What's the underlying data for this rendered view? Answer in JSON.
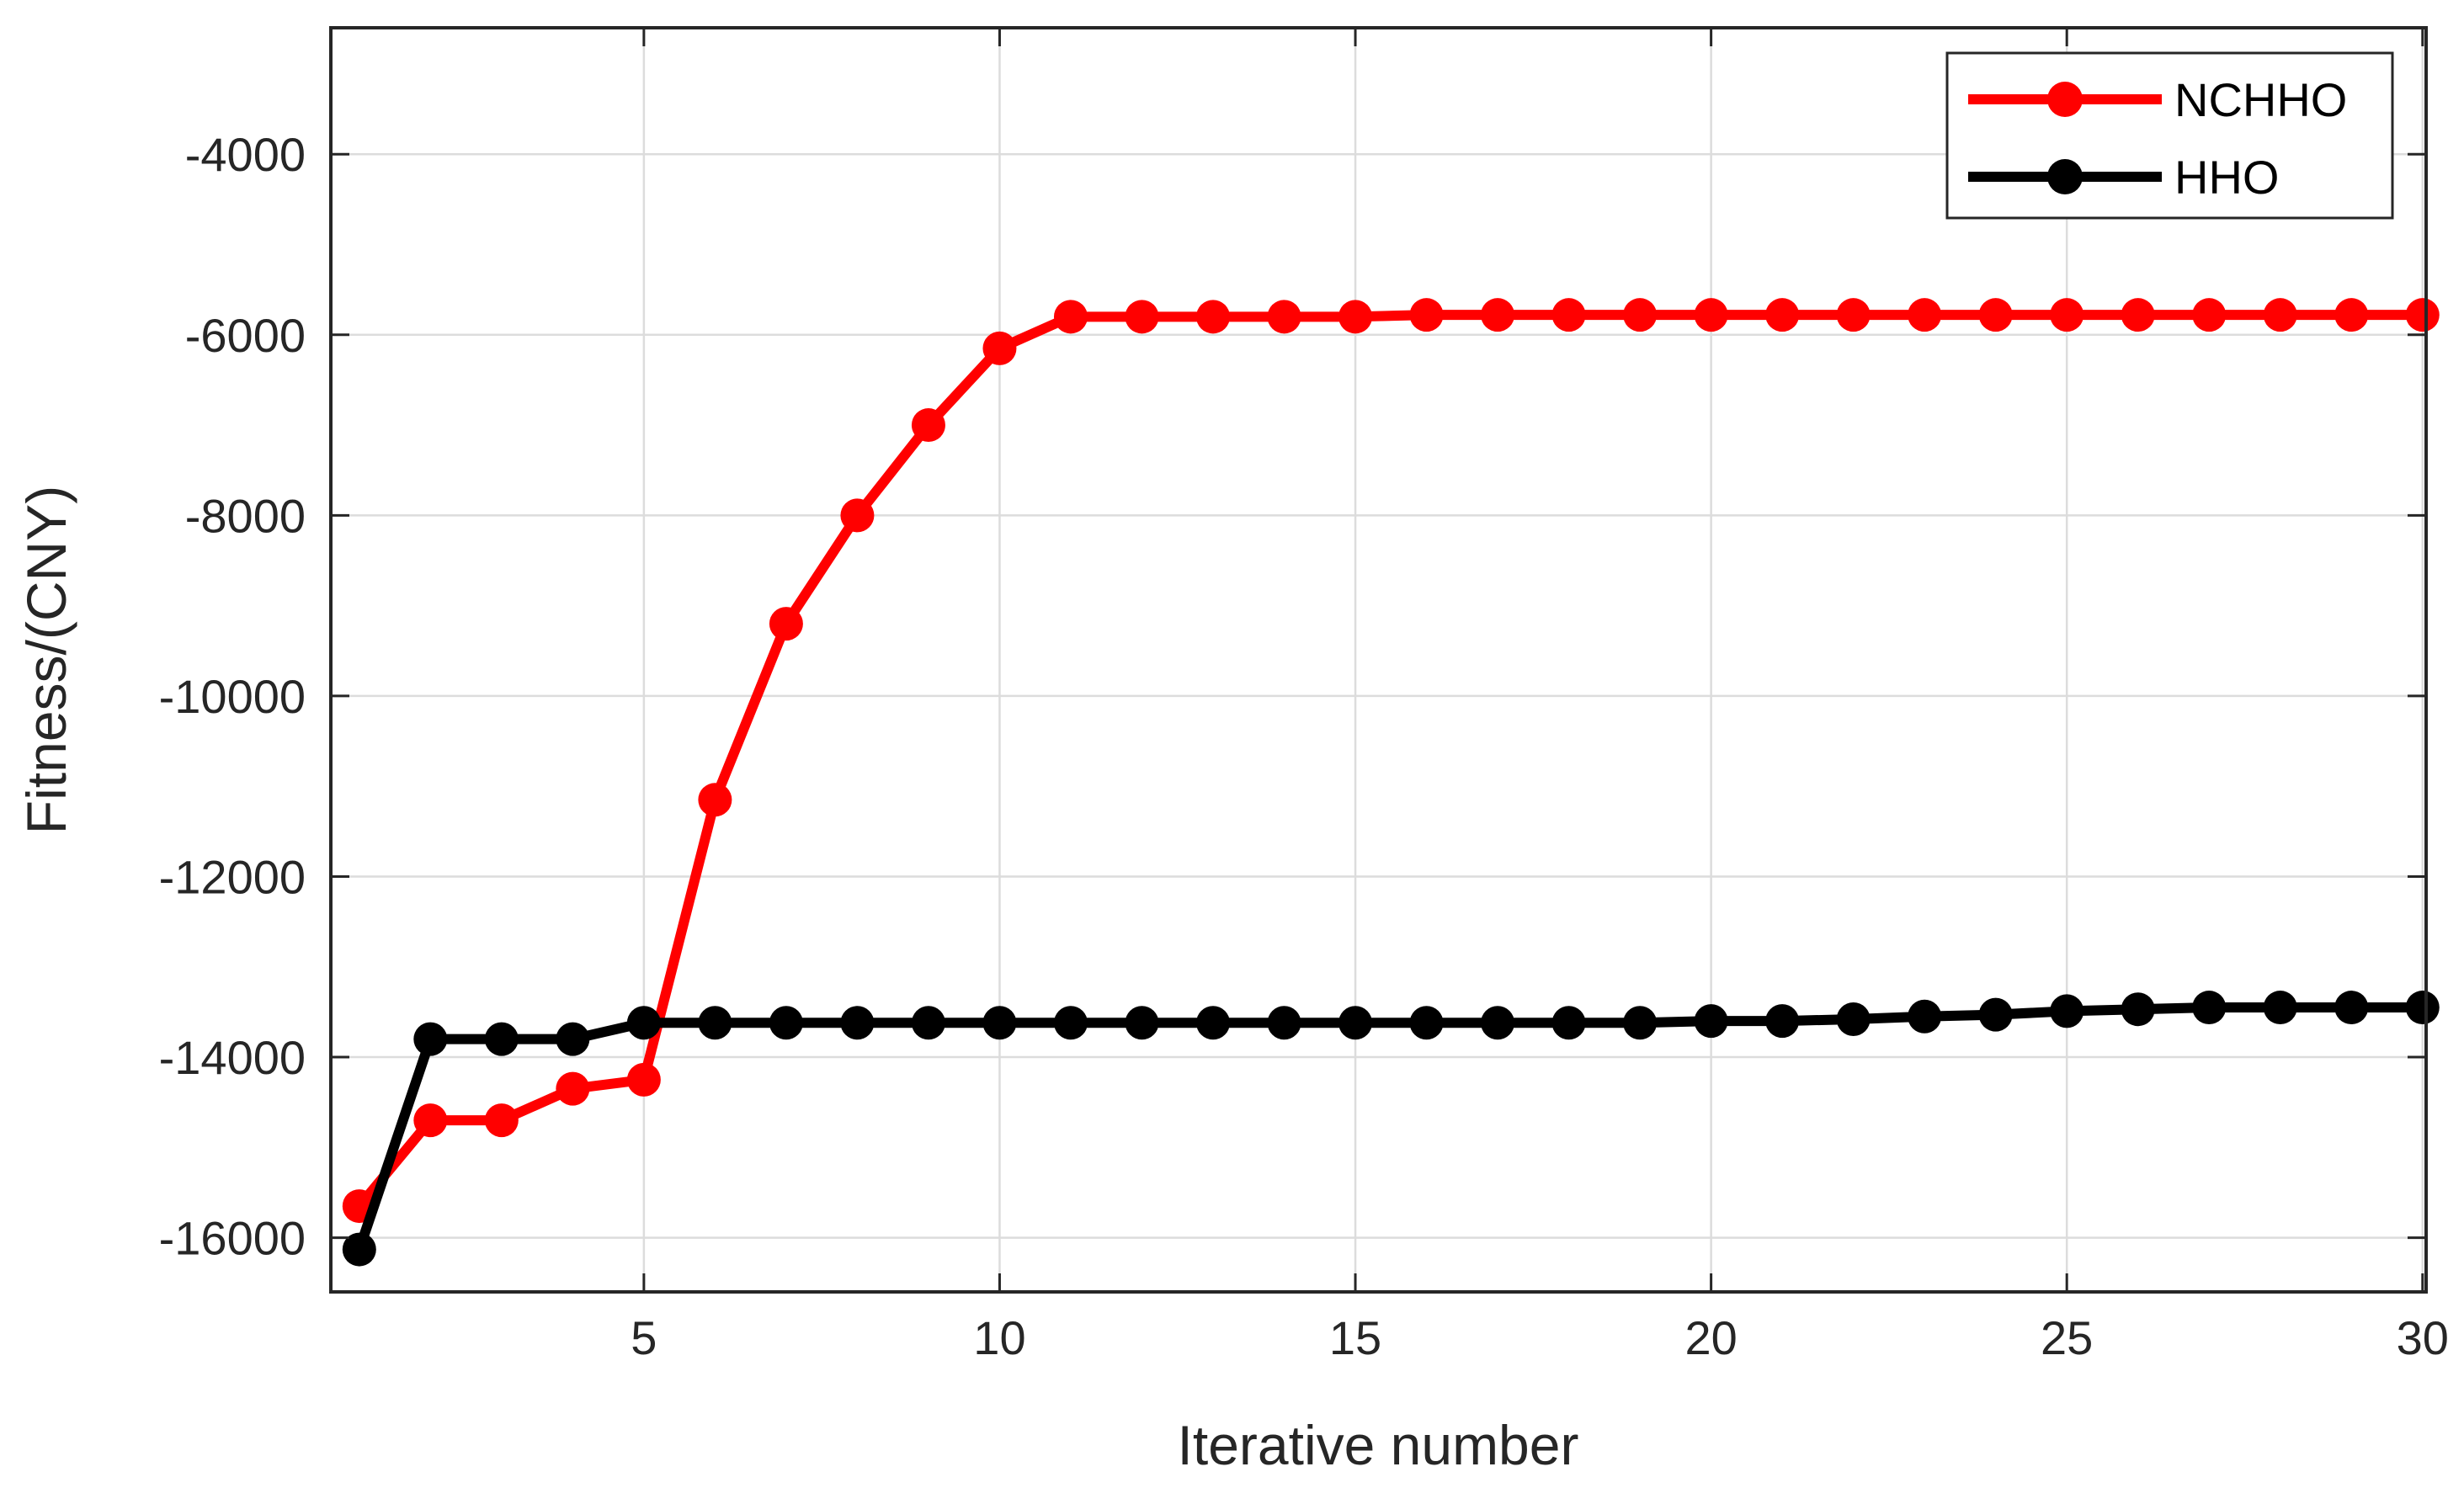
{
  "chart_data": {
    "type": "line",
    "xlabel": "Iterative number",
    "ylabel": "Fitness/(CNY)",
    "xlim": [
      0.6,
      30.05
    ],
    "ylim": [
      -16600,
      -2600
    ],
    "xticks": [
      5,
      10,
      15,
      20,
      25,
      30
    ],
    "yticks": [
      -16000,
      -14000,
      -12000,
      -10000,
      -8000,
      -6000,
      -4000
    ],
    "grid": true,
    "legend_position": "top-right",
    "x": [
      1,
      2,
      3,
      4,
      5,
      6,
      7,
      8,
      9,
      10,
      11,
      12,
      13,
      14,
      15,
      16,
      17,
      18,
      19,
      20,
      21,
      22,
      23,
      24,
      25,
      26,
      27,
      28,
      29,
      30
    ],
    "series": [
      {
        "name": "NCHHO",
        "color": "#ff0000",
        "values": [
          -15650,
          -14700,
          -14700,
          -14350,
          -14250,
          -11150,
          -9200,
          -8000,
          -7000,
          -6150,
          -5800,
          -5800,
          -5800,
          -5800,
          -5800,
          -5780,
          -5780,
          -5780,
          -5780,
          -5780,
          -5780,
          -5780,
          -5780,
          -5780,
          -5780,
          -5780,
          -5780,
          -5780,
          -5780,
          -5780
        ]
      },
      {
        "name": "HHO",
        "color": "#000000",
        "values": [
          -16130,
          -13800,
          -13800,
          -13800,
          -13620,
          -13620,
          -13620,
          -13620,
          -13620,
          -13620,
          -13620,
          -13620,
          -13620,
          -13620,
          -13620,
          -13620,
          -13620,
          -13620,
          -13620,
          -13600,
          -13600,
          -13580,
          -13550,
          -13530,
          -13490,
          -13470,
          -13450,
          -13450,
          -13450,
          -13450
        ]
      }
    ]
  }
}
